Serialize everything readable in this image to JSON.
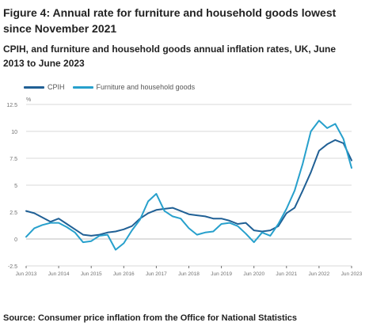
{
  "figure": {
    "title": "Figure 4: Annual rate for furniture and household goods lowest since November 2021",
    "subtitle": "CPIH, and furniture and household goods annual inflation rates, UK, June 2013 to June 2023",
    "source": "Source: Consumer price inflation from the Office for National Statistics"
  },
  "colors": {
    "cpih": "#206095",
    "furniture": "#27a0cc",
    "grid": "#d9d9d9",
    "zero": "#bdbdbd",
    "tick": "#707070"
  },
  "chart_data": {
    "type": "line",
    "unit_label": "%",
    "ylim": [
      -2.5,
      12.5
    ],
    "yticks": [
      12.5,
      10,
      7.5,
      5,
      2.5,
      0,
      -2.5
    ],
    "ytick_labels": [
      "12.5",
      "10",
      "7.5",
      "5",
      "2.5",
      "0",
      "-2.5"
    ],
    "xticks": [
      "Jun 2013",
      "Jun 2014",
      "Jun 2015",
      "Jun 2016",
      "Jun 2017",
      "Jun 2018",
      "Jun 2019",
      "Jun 2020",
      "Jun 2021",
      "Jun 2022",
      "Jun 2023"
    ],
    "grid": true,
    "legend_position": "top-left",
    "series": [
      {
        "name": "CPIH",
        "x": [
          "2013-06",
          "2013-09",
          "2013-12",
          "2014-03",
          "2014-06",
          "2014-09",
          "2014-12",
          "2015-03",
          "2015-06",
          "2015-09",
          "2015-12",
          "2016-03",
          "2016-06",
          "2016-09",
          "2016-12",
          "2017-03",
          "2017-06",
          "2017-09",
          "2017-12",
          "2018-03",
          "2018-06",
          "2018-09",
          "2018-12",
          "2019-03",
          "2019-06",
          "2019-09",
          "2019-12",
          "2020-03",
          "2020-06",
          "2020-09",
          "2020-12",
          "2021-03",
          "2021-06",
          "2021-09",
          "2021-12",
          "2022-03",
          "2022-06",
          "2022-09",
          "2022-12",
          "2023-03",
          "2023-06"
        ],
        "values": [
          2.6,
          2.4,
          2.0,
          1.6,
          1.9,
          1.4,
          0.9,
          0.4,
          0.3,
          0.4,
          0.6,
          0.7,
          0.9,
          1.2,
          1.9,
          2.4,
          2.7,
          2.8,
          2.9,
          2.6,
          2.3,
          2.2,
          2.1,
          1.9,
          1.9,
          1.7,
          1.4,
          1.5,
          0.8,
          0.7,
          0.8,
          1.2,
          2.4,
          2.9,
          4.5,
          6.2,
          8.2,
          8.8,
          9.2,
          8.9,
          7.3
        ]
      },
      {
        "name": "Furniture and household goods",
        "x": [
          "2013-06",
          "2013-09",
          "2013-12",
          "2014-03",
          "2014-06",
          "2014-09",
          "2014-12",
          "2015-03",
          "2015-06",
          "2015-09",
          "2015-12",
          "2016-03",
          "2016-06",
          "2016-09",
          "2016-12",
          "2017-03",
          "2017-06",
          "2017-09",
          "2017-12",
          "2018-03",
          "2018-06",
          "2018-09",
          "2018-12",
          "2019-03",
          "2019-06",
          "2019-09",
          "2019-12",
          "2020-03",
          "2020-06",
          "2020-09",
          "2020-12",
          "2021-03",
          "2021-06",
          "2021-09",
          "2021-12",
          "2022-03",
          "2022-06",
          "2022-09",
          "2022-12",
          "2023-03",
          "2023-06"
        ],
        "values": [
          0.2,
          1.0,
          1.3,
          1.5,
          1.5,
          1.1,
          0.6,
          -0.3,
          -0.2,
          0.3,
          0.4,
          -1.0,
          -0.4,
          0.8,
          1.8,
          3.5,
          4.2,
          2.6,
          2.1,
          1.9,
          1.0,
          0.4,
          0.6,
          0.7,
          1.4,
          1.5,
          1.2,
          0.5,
          -0.3,
          0.6,
          0.3,
          1.4,
          2.8,
          4.5,
          7.0,
          10.0,
          11.0,
          10.3,
          10.7,
          9.3,
          6.6
        ]
      }
    ]
  }
}
